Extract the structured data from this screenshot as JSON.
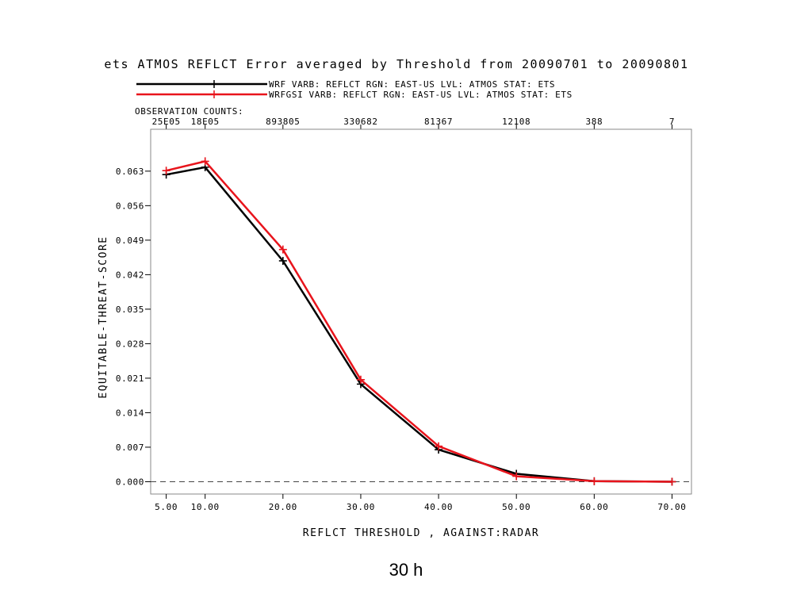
{
  "chart_data": {
    "type": "line",
    "title": "ets ATMOS REFLCT Error averaged by Threshold from 20090701 to 20090801",
    "xlabel": "REFLCT THRESHOLD , AGAINST:RADAR",
    "ylabel": "EQUITABLE-THREAT-SCORE",
    "x": [
      5,
      10,
      20,
      30,
      40,
      50,
      60,
      70
    ],
    "x_tick_labels": [
      "5.00",
      "10.00",
      "20.00",
      "30.00",
      "40.00",
      "50.00",
      "60.00",
      "70.00"
    ],
    "y_ticks": [
      0.0,
      0.007,
      0.014,
      0.021,
      0.028,
      0.035,
      0.042,
      0.049,
      0.056,
      0.063
    ],
    "y_tick_labels": [
      "0.000",
      "0.007",
      "0.014",
      "0.021",
      "0.028",
      "0.035",
      "0.042",
      "0.049",
      "0.056",
      "0.063"
    ],
    "xlim": [
      3.0,
      72.5
    ],
    "ylim": [
      -0.0025,
      0.0715
    ],
    "grid": false,
    "zero_line": "dashed",
    "legend_placement": "top-left, above plot",
    "observation_counts_label": "OBSERVATION COUNTS:",
    "observation_counts": [
      "25E05",
      "18E05",
      "893805",
      "330682",
      "81367",
      "12108",
      "388",
      "7"
    ],
    "series": [
      {
        "name": "WRF",
        "legend_text": "WRF   VARB: REFLCT   RGN: EAST-US  LVL: ATMOS  STAT: ETS",
        "color": "#000000",
        "values": [
          0.0623,
          0.0638,
          0.0448,
          0.0198,
          0.0065,
          0.0016,
          0.0001,
          0.0
        ]
      },
      {
        "name": "WRFGSI",
        "legend_text": "WRFGSI  VARB: REFLCT   RGN: EAST-US  LVL: ATMOS  STAT: ETS",
        "color": "#e8141c",
        "values": [
          0.0631,
          0.065,
          0.0471,
          0.0207,
          0.0072,
          0.0011,
          0.0001,
          0.0
        ]
      }
    ]
  },
  "caption": "30 h"
}
